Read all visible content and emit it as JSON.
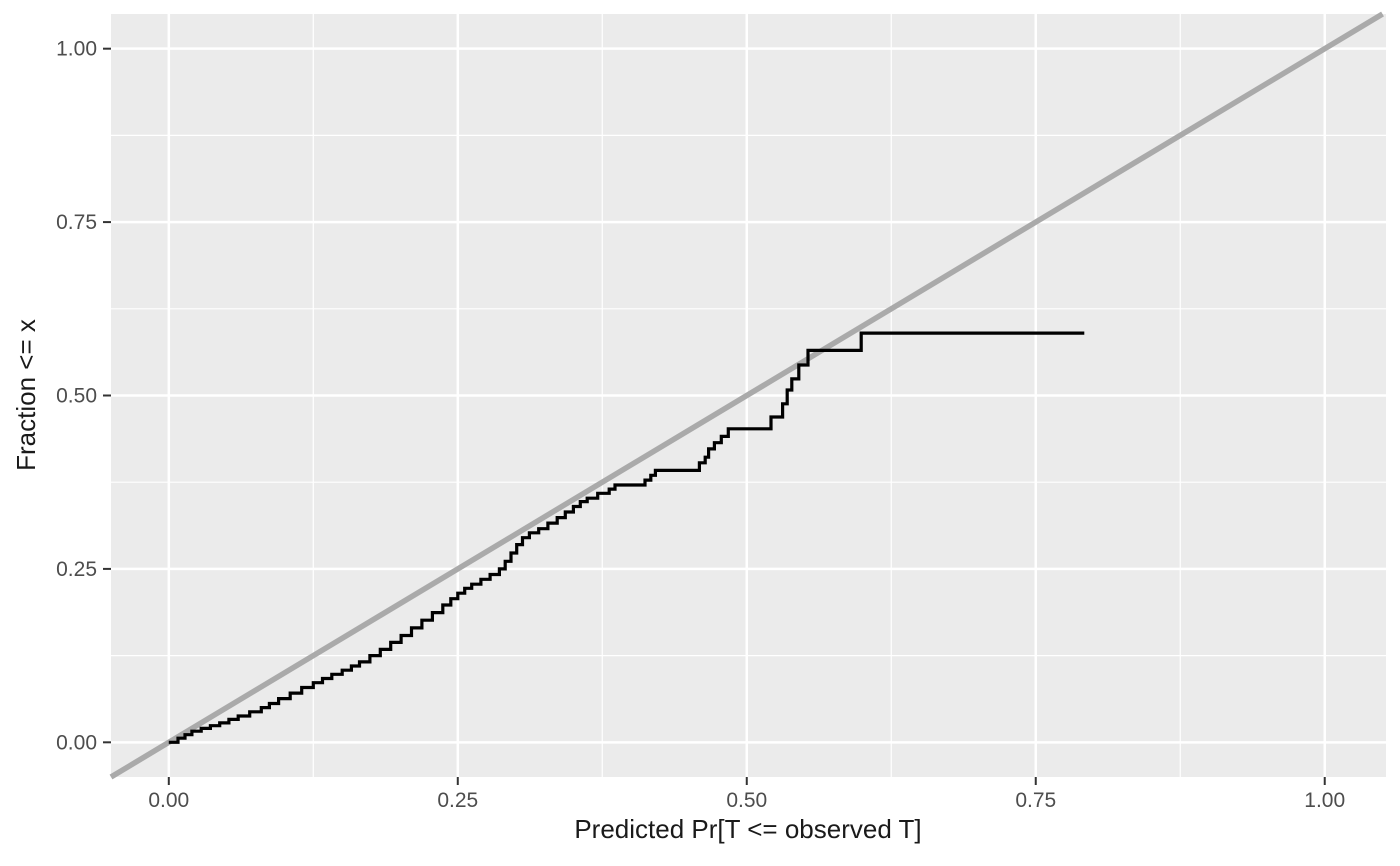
{
  "chart_data": {
    "type": "line",
    "variant": "ecdf_step_with_reference_diagonal",
    "title": "",
    "xlabel": "Predicted Pr[T <= observed T]",
    "ylabel": "Fraction <= x",
    "xlim": [
      -0.05,
      1.053
    ],
    "ylim": [
      -0.05,
      1.05
    ],
    "grid": true,
    "legend": "none",
    "x_major_ticks": [
      0,
      0.25,
      0.5,
      0.75,
      1
    ],
    "x_tick_labels": [
      "0.00",
      "0.25",
      "0.50",
      "0.75",
      "1.00"
    ],
    "x_minor_ticks": [
      0.125,
      0.375,
      0.625,
      0.875
    ],
    "y_major_ticks": [
      0,
      0.25,
      0.5,
      0.75,
      1
    ],
    "y_tick_labels": [
      "0.00",
      "0.25",
      "0.50",
      "0.75",
      "1.00"
    ],
    "y_minor_ticks": [
      0.125,
      0.375,
      0.625,
      0.875
    ],
    "colors": {
      "panel_bg": "#EBEBEB",
      "grid_major": "#FFFFFF",
      "grid_minor": "#FFFFFF",
      "axis_text": "#4D4D4D",
      "axis_title": "#1A1A1A",
      "tick_mark": "#333333",
      "reference_line": "#AAAAAA",
      "ecdf_line": "#000000"
    },
    "series": [
      {
        "name": "reference_diagonal",
        "type": "abline",
        "slope": 1,
        "intercept": 0,
        "color": "#AAAAAA",
        "stroke_width": 5.5
      },
      {
        "name": "ecdf",
        "type": "step_after",
        "color": "#000000",
        "stroke_width": 3.2,
        "points": [
          [
            0.0,
            0.0
          ],
          [
            0.008,
            0.006
          ],
          [
            0.014,
            0.011
          ],
          [
            0.02,
            0.016
          ],
          [
            0.028,
            0.02
          ],
          [
            0.036,
            0.024
          ],
          [
            0.044,
            0.028
          ],
          [
            0.052,
            0.033
          ],
          [
            0.06,
            0.038
          ],
          [
            0.07,
            0.044
          ],
          [
            0.08,
            0.05
          ],
          [
            0.087,
            0.056
          ],
          [
            0.095,
            0.063
          ],
          [
            0.105,
            0.071
          ],
          [
            0.115,
            0.079
          ],
          [
            0.125,
            0.086
          ],
          [
            0.133,
            0.092
          ],
          [
            0.141,
            0.098
          ],
          [
            0.15,
            0.104
          ],
          [
            0.158,
            0.11
          ],
          [
            0.165,
            0.116
          ],
          [
            0.174,
            0.125
          ],
          [
            0.183,
            0.134
          ],
          [
            0.192,
            0.144
          ],
          [
            0.201,
            0.154
          ],
          [
            0.21,
            0.165
          ],
          [
            0.219,
            0.176
          ],
          [
            0.228,
            0.187
          ],
          [
            0.237,
            0.198
          ],
          [
            0.244,
            0.207
          ],
          [
            0.25,
            0.215
          ],
          [
            0.256,
            0.222
          ],
          [
            0.262,
            0.228
          ],
          [
            0.27,
            0.235
          ],
          [
            0.278,
            0.242
          ],
          [
            0.286,
            0.25
          ],
          [
            0.291,
            0.261
          ],
          [
            0.296,
            0.273
          ],
          [
            0.301,
            0.285
          ],
          [
            0.306,
            0.295
          ],
          [
            0.312,
            0.302
          ],
          [
            0.32,
            0.308
          ],
          [
            0.328,
            0.316
          ],
          [
            0.336,
            0.324
          ],
          [
            0.343,
            0.332
          ],
          [
            0.35,
            0.34
          ],
          [
            0.356,
            0.347
          ],
          [
            0.362,
            0.352
          ],
          [
            0.371,
            0.359
          ],
          [
            0.381,
            0.365
          ],
          [
            0.386,
            0.371
          ],
          [
            0.412,
            0.378
          ],
          [
            0.417,
            0.385
          ],
          [
            0.421,
            0.392
          ],
          [
            0.459,
            0.403
          ],
          [
            0.464,
            0.411
          ],
          [
            0.467,
            0.423
          ],
          [
            0.472,
            0.432
          ],
          [
            0.478,
            0.441
          ],
          [
            0.484,
            0.452
          ],
          [
            0.521,
            0.469
          ],
          [
            0.531,
            0.488
          ],
          [
            0.535,
            0.508
          ],
          [
            0.539,
            0.524
          ],
          [
            0.545,
            0.544
          ],
          [
            0.553,
            0.565
          ],
          [
            0.599,
            0.59
          ],
          [
            0.792,
            0.59
          ]
        ]
      }
    ]
  }
}
